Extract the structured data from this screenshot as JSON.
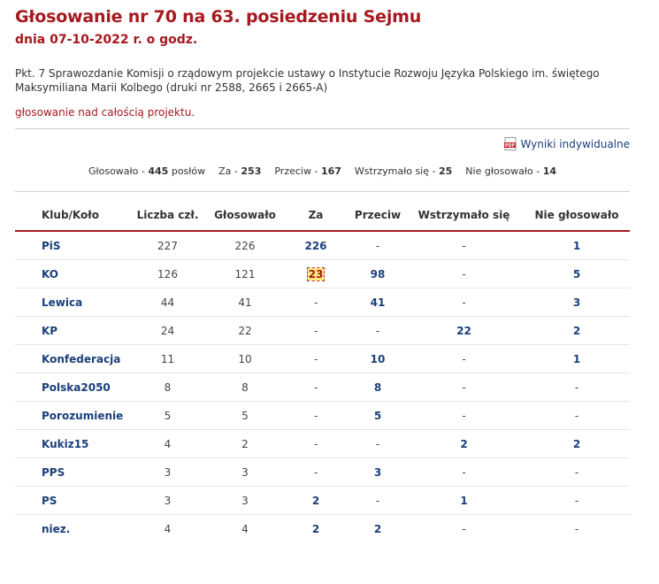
{
  "header": {
    "title": "Głosowanie nr 70 na 63. posiedzeniu Sejmu",
    "subtitle": "dnia 07-10-2022 r. o godz."
  },
  "subject": "Pkt. 7 Sprawozdanie Komisji o rządowym projekcie ustawy o Instytucie Rozwoju Języka Polskiego im. świętego Maksymiliana Marii Kolbego (druki nr 2588, 2665 i 2665-A)",
  "vote_type": "głosowanie nad całością projektu.",
  "pdf_link": {
    "icon": "pdf-icon",
    "label": "Wyniki indywidualne"
  },
  "summary": {
    "voted_label": "Głosowało -",
    "voted": "445",
    "voted_unit": "posłów",
    "for_label": "Za -",
    "for": "253",
    "against_label": "Przeciw -",
    "against": "167",
    "abstain_label": "Wstrzymało się -",
    "abstain": "25",
    "absent_label": "Nie głosowało -",
    "absent": "14"
  },
  "table": {
    "headers": [
      "Klub/Koło",
      "Liczba czł.",
      "Głosowało",
      "Za",
      "Przeciw",
      "Wstrzymało się",
      "Nie głosowało"
    ],
    "rows": [
      [
        "PiS",
        "227",
        "226",
        "226",
        "-",
        "-",
        "1"
      ],
      [
        "KO",
        "126",
        "121",
        "23",
        "98",
        "-",
        "5"
      ],
      [
        "Lewica",
        "44",
        "41",
        "-",
        "41",
        "-",
        "3"
      ],
      [
        "KP",
        "24",
        "22",
        "-",
        "-",
        "22",
        "2"
      ],
      [
        "Konfederacja",
        "11",
        "10",
        "-",
        "10",
        "-",
        "1"
      ],
      [
        "Polska2050",
        "8",
        "8",
        "-",
        "8",
        "-",
        "-"
      ],
      [
        "Porozumienie",
        "5",
        "5",
        "-",
        "5",
        "-",
        "-"
      ],
      [
        "Kukiz15",
        "4",
        "2",
        "-",
        "-",
        "2",
        "2"
      ],
      [
        "PPS",
        "3",
        "3",
        "-",
        "3",
        "-",
        "-"
      ],
      [
        "PS",
        "3",
        "3",
        "2",
        "-",
        "1",
        "-"
      ],
      [
        "niez.",
        "4",
        "4",
        "2",
        "2",
        "-",
        "-"
      ]
    ],
    "highlighted_cell": {
      "row": 1,
      "col": 3
    }
  },
  "colors": {
    "accent": "#a6191f",
    "link": "#1a3f7a",
    "highlight": "#ffe97a"
  }
}
